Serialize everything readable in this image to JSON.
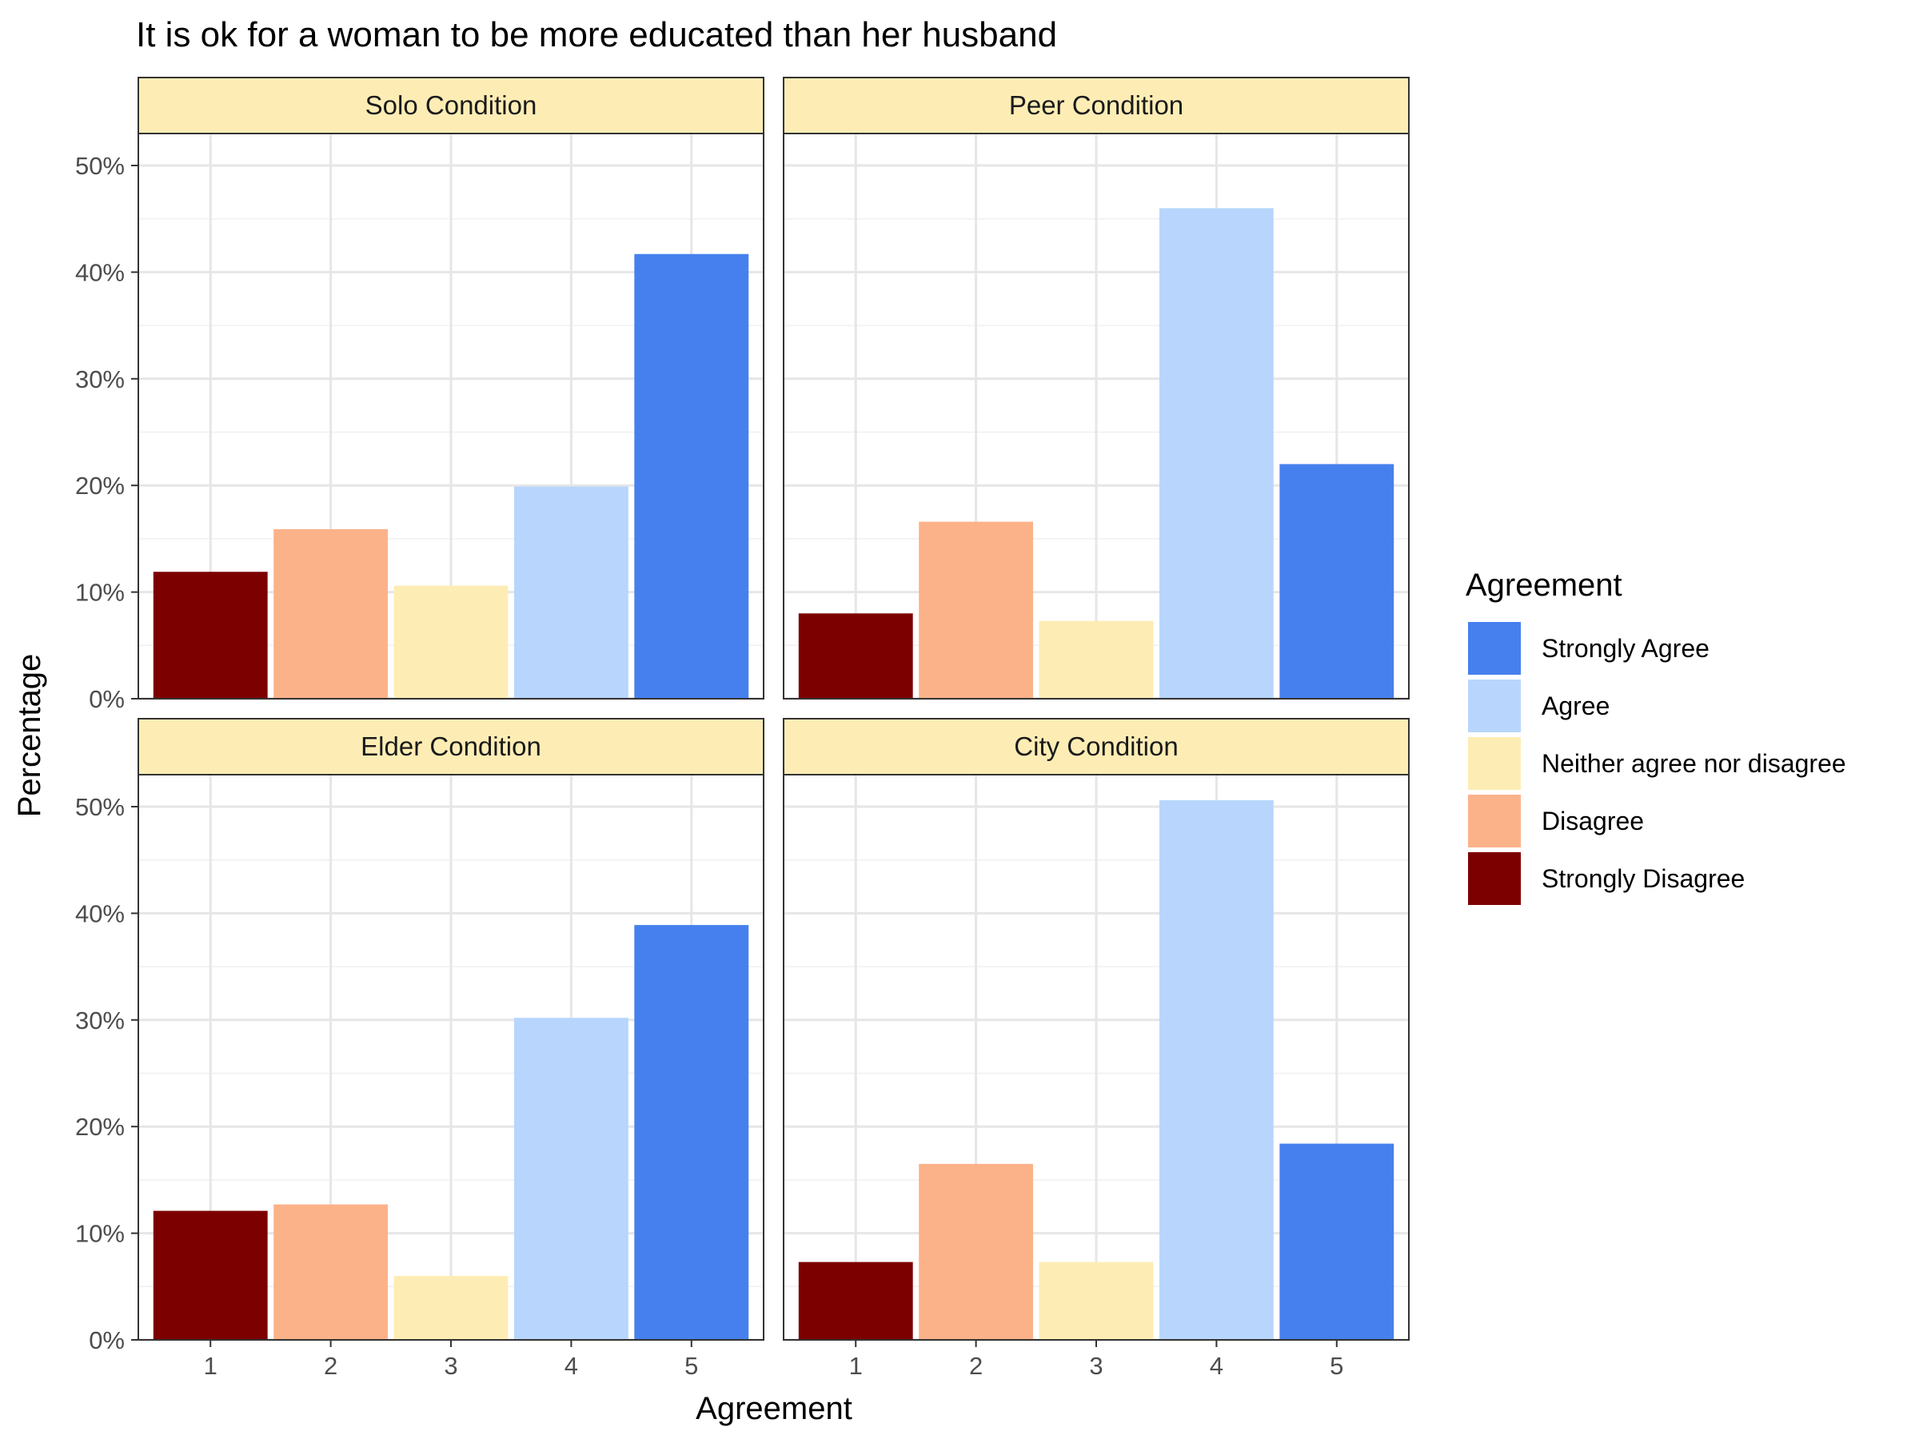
{
  "chart_data": {
    "type": "bar",
    "title": "It is ok for a woman to be more educated than her husband",
    "xlabel": "Agreement",
    "ylabel": "Percentage",
    "ylim": [
      0,
      0.53
    ],
    "yticks": [
      0,
      0.1,
      0.2,
      0.3,
      0.4,
      0.5
    ],
    "ytick_labels": [
      "0%",
      "10%",
      "20%",
      "30%",
      "40%",
      "50%"
    ],
    "categories": [
      "1",
      "2",
      "3",
      "4",
      "5"
    ],
    "grid": true,
    "legend": {
      "title": "Agreement",
      "position": "right",
      "items": [
        {
          "label": "Strongly Agree",
          "color": "#4680ee"
        },
        {
          "label": "Agree",
          "color": "#b8d6fd"
        },
        {
          "label": "Neither agree nor disagree",
          "color": "#fdedb5"
        },
        {
          "label": "Disagree",
          "color": "#fcb289"
        },
        {
          "label": "Strongly Disagree",
          "color": "#7d0000"
        }
      ]
    },
    "bar_colors": [
      "#7d0000",
      "#fcb289",
      "#fdedb5",
      "#b8d6fd",
      "#4680ee"
    ],
    "strip_color": "#fdedb5",
    "panels": [
      {
        "name": "Solo Condition",
        "values": [
          0.119,
          0.159,
          0.106,
          0.199,
          0.417
        ]
      },
      {
        "name": "Peer Condition",
        "values": [
          0.08,
          0.166,
          0.073,
          0.46,
          0.22
        ]
      },
      {
        "name": "Elder Condition",
        "values": [
          0.121,
          0.127,
          0.06,
          0.302,
          0.389
        ]
      },
      {
        "name": "City Condition",
        "values": [
          0.073,
          0.165,
          0.073,
          0.506,
          0.184
        ]
      }
    ]
  }
}
